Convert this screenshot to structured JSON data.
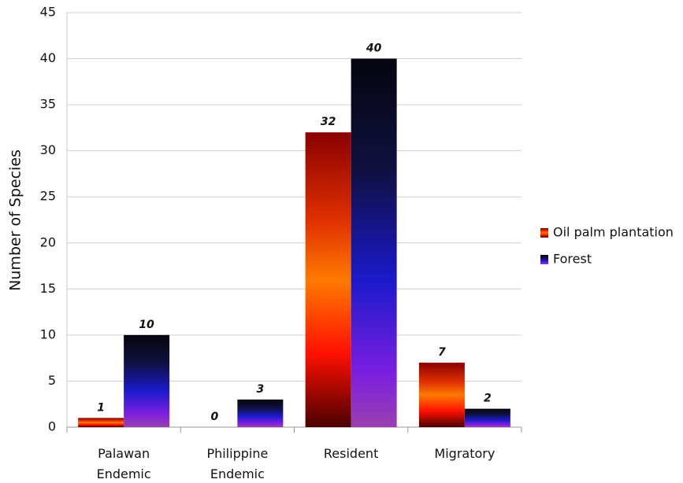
{
  "chart_data": {
    "type": "bar",
    "y_label": "Number of Species",
    "categories": [
      "Palawan Endemic",
      "Philippine Endemic",
      "Resident",
      "Migratory"
    ],
    "series": [
      {
        "name": "Oil palm plantation",
        "color": "#ff7a00",
        "values": [
          1,
          0,
          32,
          7
        ]
      },
      {
        "name": "Forest",
        "color": "#1a1acc",
        "values": [
          10,
          3,
          40,
          2
        ]
      }
    ],
    "ylim": [
      0,
      45
    ],
    "yticks": [
      0,
      5,
      10,
      15,
      20,
      25,
      30,
      35,
      40,
      45
    ],
    "grid": true,
    "legend": "right"
  }
}
